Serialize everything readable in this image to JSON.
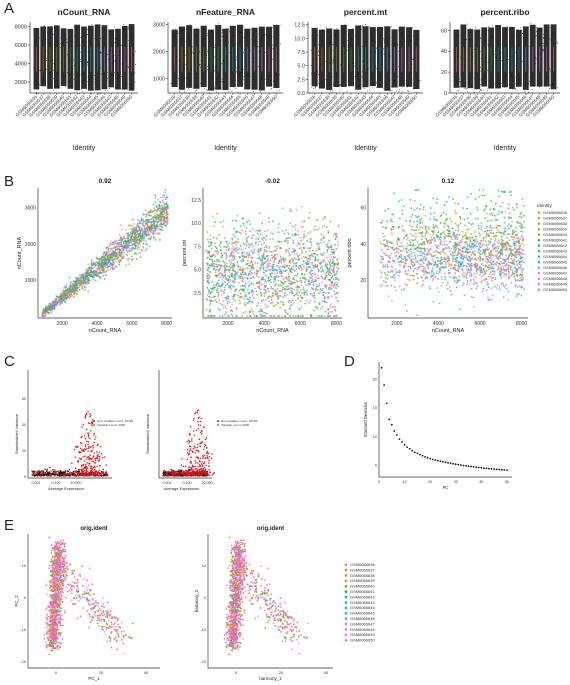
{
  "panel_labels": [
    "A",
    "B",
    "C",
    "D",
    "E"
  ],
  "palette": [
    "#F8766D",
    "#E58700",
    "#C99800",
    "#A3A500",
    "#6BB100",
    "#00BA38",
    "#00BF7D",
    "#00C0AF",
    "#00BCD8",
    "#00B0F6",
    "#619CFF",
    "#B983FF",
    "#E76BF3",
    "#FD61D1",
    "#FF67A4"
  ],
  "samples": [
    "GSM6066636",
    "GSM6066637",
    "GSM6066638",
    "GSM6066639",
    "GSM6066640",
    "GSM6066641",
    "GSM6066642",
    "GSM6066643",
    "GSM6066644",
    "GSM6066645",
    "GSM6066646",
    "GSM6066647",
    "GSM6066648",
    "GSM6066649",
    "GSM6066650"
  ],
  "chart_data": [
    {
      "panel": "A",
      "type": "scatter",
      "title": "nCount_RNA",
      "xlabel": "Identity",
      "ylabel": "",
      "ylim": [
        800,
        8500
      ],
      "yticks": [
        "2000",
        "4000",
        "6000",
        "8000"
      ],
      "ytick_values": [
        2000,
        4000,
        6000,
        8000
      ]
    },
    {
      "panel": "A",
      "type": "scatter",
      "title": "nFeature_RNA",
      "xlabel": "Identity",
      "ylabel": "",
      "ylim": [
        450,
        3100
      ],
      "yticks": [
        "1000",
        "2000",
        "3000"
      ],
      "ytick_values": [
        1000,
        2000,
        3000
      ]
    },
    {
      "panel": "A",
      "type": "scatter",
      "title": "percent.mt",
      "xlabel": "Identity",
      "ylabel": "",
      "ylim": [
        0,
        13
      ],
      "yticks": [
        "0.0",
        "2.5",
        "5.0",
        "7.5",
        "10.0",
        "12.5"
      ],
      "ytick_values": [
        0,
        2.5,
        5,
        7.5,
        10,
        12.5
      ]
    },
    {
      "panel": "A",
      "type": "scatter",
      "title": "percent.ribo",
      "xlabel": "Identity",
      "ylabel": "",
      "ylim": [
        0,
        68
      ],
      "yticks": [
        "0",
        "20",
        "40",
        "60"
      ],
      "ytick_values": [
        0,
        20,
        40,
        60
      ]
    },
    {
      "panel": "B",
      "type": "scatter",
      "title": "0.92",
      "xlabel": "nCount_RNA",
      "ylabel": "nCount_RNA",
      "xticks": [
        "2000",
        "4000",
        "6000",
        "8000"
      ],
      "yticks": [
        "1000",
        "2000",
        "3000"
      ]
    },
    {
      "panel": "B",
      "type": "scatter",
      "title": "-0.02",
      "xlabel": "nCount_RNA",
      "ylabel": "percent.mt",
      "xticks": [
        "2000",
        "4000",
        "6000",
        "8000"
      ],
      "yticks": [
        "2.5",
        "5.0",
        "7.5",
        "10.0",
        "12.5"
      ]
    },
    {
      "panel": "B",
      "type": "scatter",
      "title": "0.12",
      "xlabel": "nCount_RNA",
      "ylabel": "percent.ribo",
      "xticks": [
        "2000",
        "4000",
        "6000",
        "8000"
      ],
      "yticks": [
        "20",
        "40",
        "60"
      ],
      "legend_title": "Identity",
      "legend_position": "right"
    },
    {
      "panel": "C",
      "type": "scatter",
      "xlabel": "Average Expression",
      "ylabel": "Standardized Variance",
      "xticks": [
        "0.001",
        "0.100",
        "10.000"
      ],
      "yticks": [
        "0",
        "20",
        "40",
        "60"
      ],
      "legend": [
        "Non-variable count: 15184",
        "Variable count: 2000"
      ]
    },
    {
      "panel": "C",
      "type": "scatter",
      "xlabel": "Average Expression",
      "ylabel": "Standardized Variance",
      "xticks": [
        "0.001",
        "0.100",
        "10.000"
      ],
      "legend": [
        "Non-variable count: 15184",
        "Variable count: 2000"
      ]
    },
    {
      "panel": "D",
      "type": "scatter",
      "xlabel": "PC",
      "ylabel": "Standard Deviation",
      "x": [
        1,
        2,
        3,
        4,
        5,
        6,
        7,
        8,
        9,
        10,
        11,
        12,
        13,
        14,
        15,
        16,
        17,
        18,
        19,
        20,
        21,
        22,
        23,
        24,
        25,
        26,
        27,
        28,
        29,
        30,
        31,
        32,
        33,
        34,
        35,
        36,
        37,
        38,
        39,
        40,
        41,
        42,
        43,
        44,
        45,
        46,
        47,
        48,
        49,
        50
      ],
      "values": [
        22.0,
        19.0,
        15.8,
        13.0,
        12.1,
        11.0,
        10.3,
        9.6,
        9.1,
        8.6,
        8.2,
        7.9,
        7.6,
        7.3,
        7.1,
        6.9,
        6.7,
        6.5,
        6.35,
        6.2,
        6.05,
        5.95,
        5.85,
        5.75,
        5.65,
        5.55,
        5.45,
        5.38,
        5.3,
        5.22,
        5.15,
        5.08,
        5.0,
        4.94,
        4.88,
        4.82,
        4.76,
        4.7,
        4.65,
        4.6,
        4.55,
        4.5,
        4.46,
        4.42,
        4.38,
        4.34,
        4.3,
        4.27,
        4.24,
        4.2
      ],
      "xticks": [
        "0",
        "10",
        "20",
        "30",
        "40",
        "50"
      ],
      "yticks": [
        "5",
        "10",
        "15",
        "20"
      ],
      "xlim": [
        0,
        52
      ],
      "ylim": [
        3,
        23
      ]
    },
    {
      "panel": "E",
      "type": "scatter",
      "title": "orig.ident",
      "xlabel": "PC_1",
      "ylabel": "PC_2",
      "xticks": [
        "0",
        "20",
        "40"
      ],
      "yticks": [
        "-20",
        "-10",
        "0",
        "10"
      ]
    },
    {
      "panel": "E",
      "type": "scatter",
      "title": "orig.ident",
      "xlabel": "harmony_1",
      "ylabel": "harmony_2",
      "xticks": [
        "0",
        "20",
        "40"
      ],
      "yticks": [
        "-20",
        "-10",
        "0",
        "10"
      ]
    }
  ]
}
